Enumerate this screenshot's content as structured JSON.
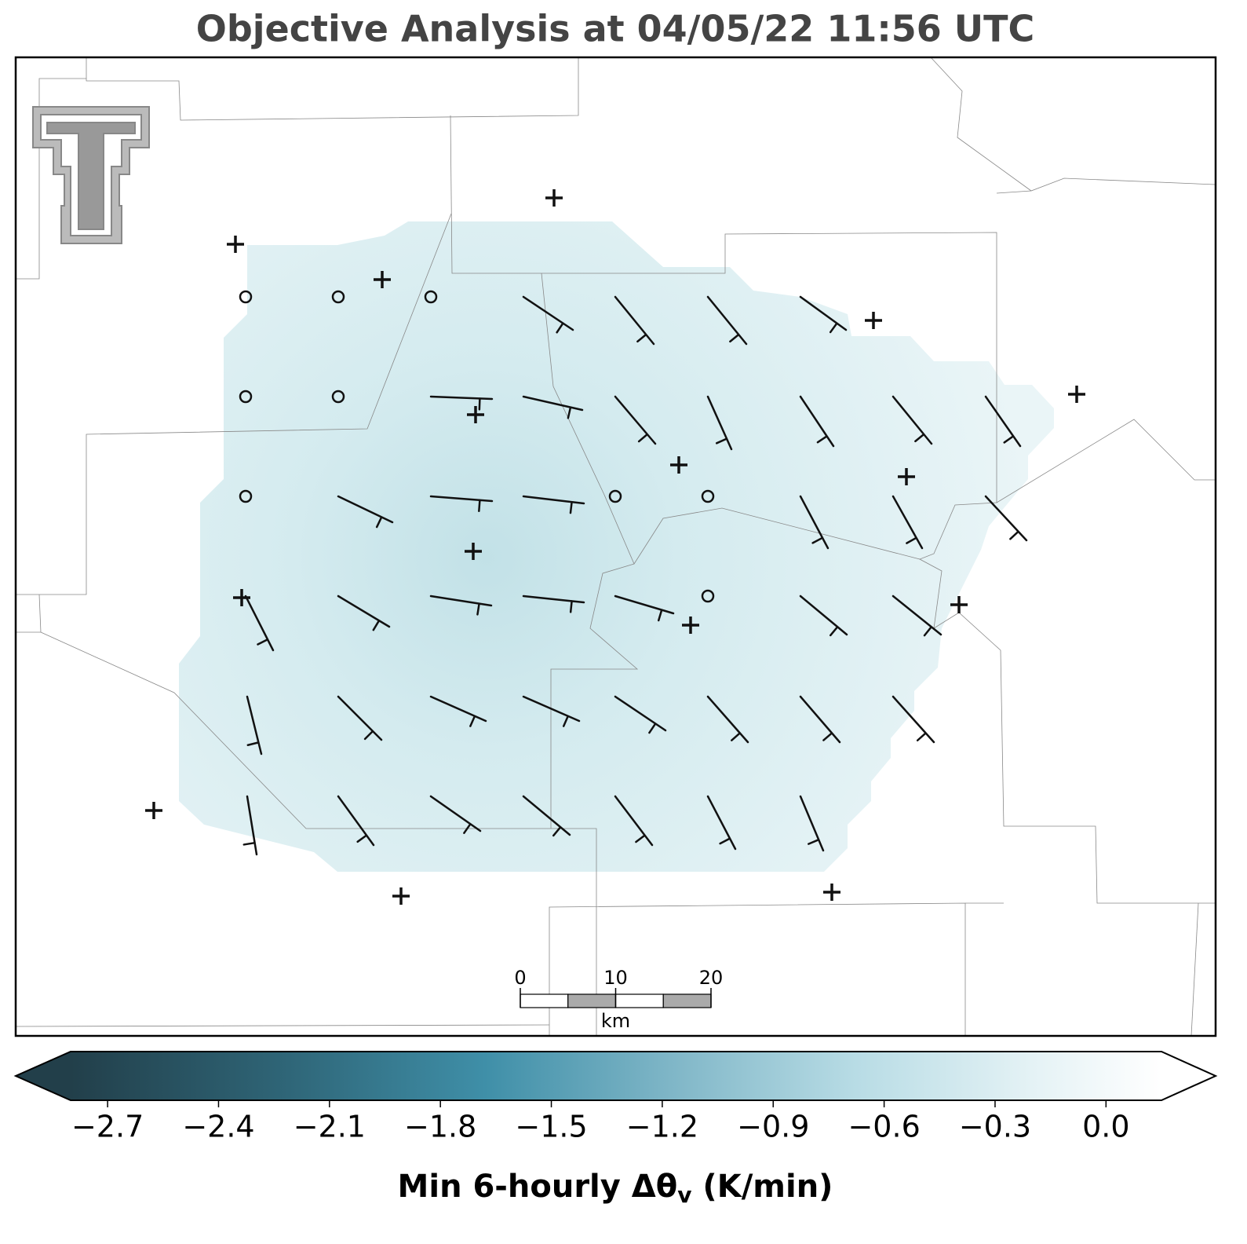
{
  "chart_data": {
    "type": "map",
    "title": "Objective Analysis at 04/05/22 11:56 UTC",
    "scale_bar": {
      "ticks": [
        0,
        10,
        20
      ],
      "unit": "km"
    },
    "colorbar": {
      "clim": [
        -2.8,
        0.15
      ],
      "ticks": [
        {
          "value": -2.7,
          "label": "−2.7"
        },
        {
          "value": -2.4,
          "label": "−2.4"
        },
        {
          "value": -2.1,
          "label": "−2.1"
        },
        {
          "value": -1.8,
          "label": "−1.8"
        },
        {
          "value": -1.5,
          "label": "−1.5"
        },
        {
          "value": -1.2,
          "label": "−1.2"
        },
        {
          "value": -0.9,
          "label": "−0.9"
        },
        {
          "value": -0.6,
          "label": "−0.6"
        },
        {
          "value": -0.3,
          "label": "−0.3"
        },
        {
          "value": 0,
          "label": "0.0"
        }
      ],
      "label_parts": [
        "Min 6-hourly Δθ",
        "v",
        " (K/min)"
      ]
    }
  }
}
